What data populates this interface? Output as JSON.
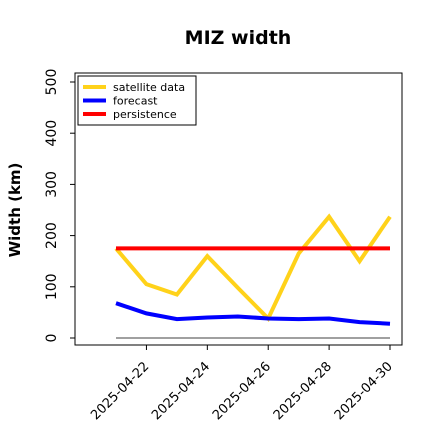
{
  "chart_data": {
    "type": "line",
    "title": "MIZ width",
    "xlabel": "",
    "ylabel": "Width (km)",
    "x": [
      "2025-04-21",
      "2025-04-22",
      "2025-04-23",
      "2025-04-24",
      "2025-04-25",
      "2025-04-26",
      "2025-04-27",
      "2025-04-28",
      "2025-04-29",
      "2025-04-30"
    ],
    "xticks": [
      "2025-04-22",
      "2025-04-24",
      "2025-04-26",
      "2025-04-28",
      "2025-04-30"
    ],
    "xtick_colors": [
      "#2a8a2a",
      "#000000",
      "#000000",
      "#000000",
      "#000000"
    ],
    "ylim": [
      0,
      500
    ],
    "yticks": [
      0,
      100,
      200,
      300,
      400,
      500
    ],
    "grid": false,
    "legend_position": "top-left",
    "series": [
      {
        "name": "satellite data",
        "color": "#ffd21a",
        "values": [
          175,
          105,
          85,
          160,
          98,
          38,
          165,
          237,
          150,
          237
        ]
      },
      {
        "name": "forecast",
        "color": "#0000ff",
        "values": [
          68,
          48,
          37,
          40,
          42,
          38,
          37,
          38,
          31,
          28
        ]
      },
      {
        "name": "persistence",
        "color": "#ff0000",
        "values": [
          175,
          175,
          175,
          175,
          175,
          175,
          175,
          175,
          175,
          175
        ]
      }
    ],
    "reference_line": {
      "value": 0,
      "color": "#808080"
    }
  }
}
